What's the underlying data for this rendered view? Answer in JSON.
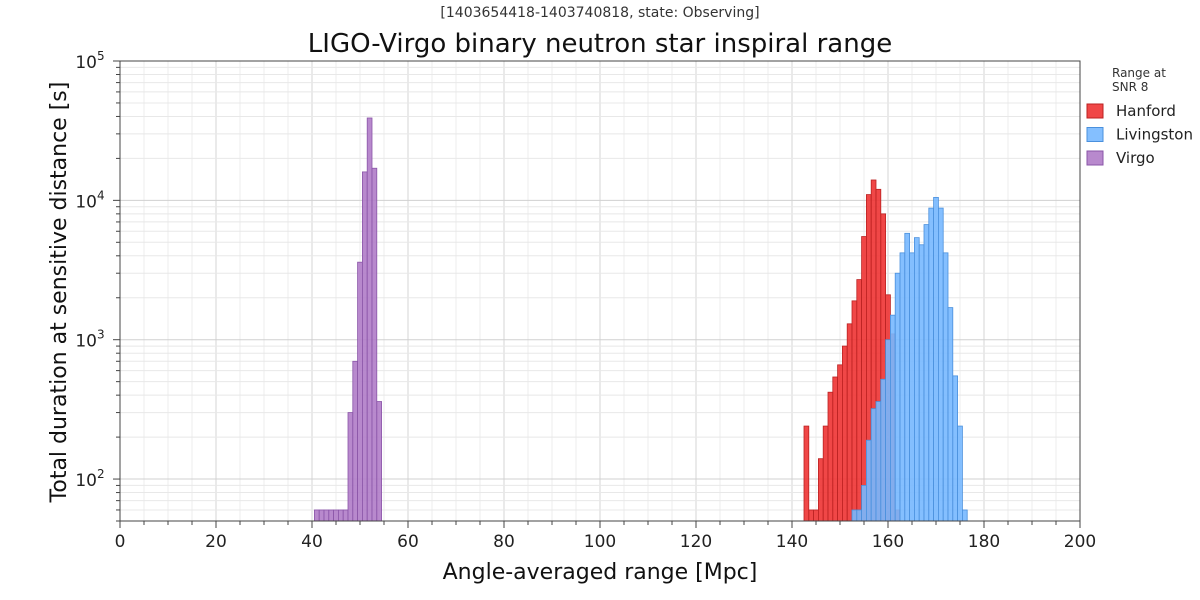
{
  "chart_data": {
    "type": "bar",
    "subtitle": "[1403654418-1403740818, state: Observing]",
    "title": "LIGO-Virgo binary neutron star inspiral range",
    "xlabel": "Angle-averaged range [Mpc]",
    "ylabel": "Total duration at sensitive distance [s]",
    "xlim": [
      0,
      200
    ],
    "ylim": [
      50,
      100000
    ],
    "yscale": "log",
    "grid": true,
    "xticks": [
      "0",
      "20",
      "40",
      "60",
      "80",
      "100",
      "120",
      "140",
      "160",
      "180",
      "200"
    ],
    "yticks": [
      {
        "value": 100,
        "base": "10",
        "exp": "2"
      },
      {
        "value": 1000,
        "base": "10",
        "exp": "3"
      },
      {
        "value": 10000,
        "base": "10",
        "exp": "4"
      },
      {
        "value": 100000,
        "base": "10",
        "exp": "5"
      }
    ],
    "bin_width": 1,
    "legend": {
      "title": [
        "Range at",
        "SNR 8"
      ],
      "placement": "outside-right"
    },
    "series": [
      {
        "name": "Hanford",
        "color": "#ee3333",
        "edge": "#bb2222",
        "opacity": 0.9,
        "bins": [
          142.5,
          143.5,
          144.5,
          145.5,
          146.5,
          147.5,
          148.5,
          149.5,
          150.5,
          151.5,
          152.5,
          153.5,
          154.5,
          155.5,
          156.5,
          157.5,
          158.5,
          159.5,
          160.5,
          161.5
        ],
        "values": [
          240,
          60,
          60,
          140,
          240,
          420,
          540,
          660,
          900,
          1300,
          1900,
          2700,
          5500,
          11000,
          14000,
          12000,
          8000,
          2100,
          1100,
          60
        ]
      },
      {
        "name": "Livingston",
        "color": "#77b8ff",
        "edge": "#4a90dd",
        "opacity": 0.9,
        "bins": [
          152.5,
          153.5,
          154.5,
          155.5,
          156.5,
          157.5,
          158.5,
          159.5,
          160.5,
          161.5,
          162.5,
          163.5,
          164.5,
          165.5,
          166.5,
          167.5,
          168.5,
          169.5,
          170.5,
          171.5,
          172.5,
          173.5,
          174.5,
          175.5
        ],
        "values": [
          60,
          60,
          90,
          190,
          320,
          360,
          520,
          1000,
          1500,
          3000,
          4200,
          5800,
          4200,
          5400,
          4800,
          6700,
          8800,
          10500,
          8800,
          4200,
          1700,
          550,
          240,
          60
        ]
      },
      {
        "name": "Virgo",
        "color": "#b07cc8",
        "edge": "#8a55a8",
        "opacity": 0.9,
        "bins": [
          40.5,
          41.5,
          42.5,
          43.5,
          44.5,
          45.5,
          46.5,
          47.5,
          48.5,
          49.5,
          50.5,
          51.5,
          52.5,
          53.5
        ],
        "values": [
          60,
          60,
          60,
          60,
          60,
          60,
          60,
          300,
          700,
          3600,
          16000,
          39000,
          17000,
          360
        ]
      }
    ]
  }
}
